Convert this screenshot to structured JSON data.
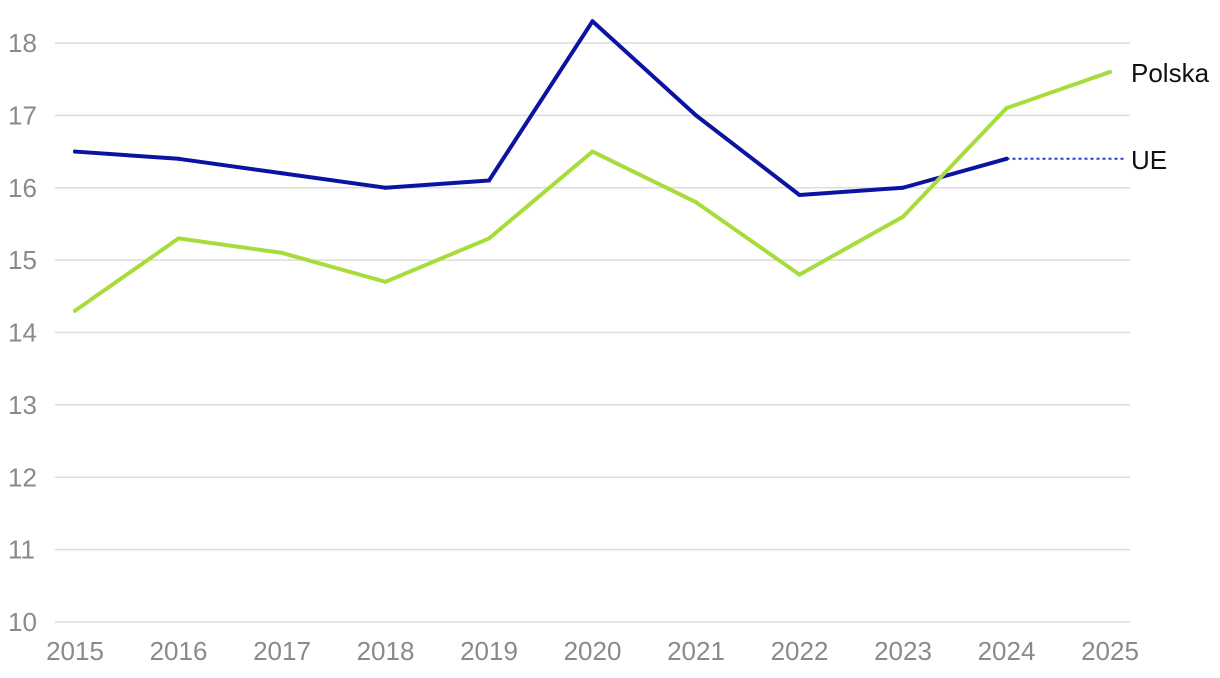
{
  "chart_data": {
    "type": "line",
    "x": [
      2015,
      2016,
      2017,
      2018,
      2019,
      2020,
      2021,
      2022,
      2023,
      2024,
      2025
    ],
    "xticks": [
      "2015",
      "2016",
      "2017",
      "2018",
      "2019",
      "2020",
      "2021",
      "2022",
      "2023",
      "2024",
      "2025"
    ],
    "yticks": [
      "10",
      "11",
      "12",
      "13",
      "14",
      "15",
      "16",
      "17",
      "18"
    ],
    "ylim": [
      10,
      18
    ],
    "grid": "horizontal",
    "series": [
      {
        "name": "UE",
        "color": "#0a14a0",
        "values": [
          16.5,
          16.4,
          16.2,
          16.0,
          16.1,
          18.3,
          17.0,
          15.9,
          16.0,
          16.4,
          null
        ],
        "extension": {
          "style": "dotted",
          "from": 2024,
          "to": 2025,
          "value": 16.4
        }
      },
      {
        "name": "Polska",
        "color": "#a8dc3c",
        "values": [
          14.3,
          15.3,
          15.1,
          14.7,
          15.3,
          16.5,
          15.8,
          14.8,
          15.6,
          17.1,
          17.6
        ]
      }
    ]
  }
}
